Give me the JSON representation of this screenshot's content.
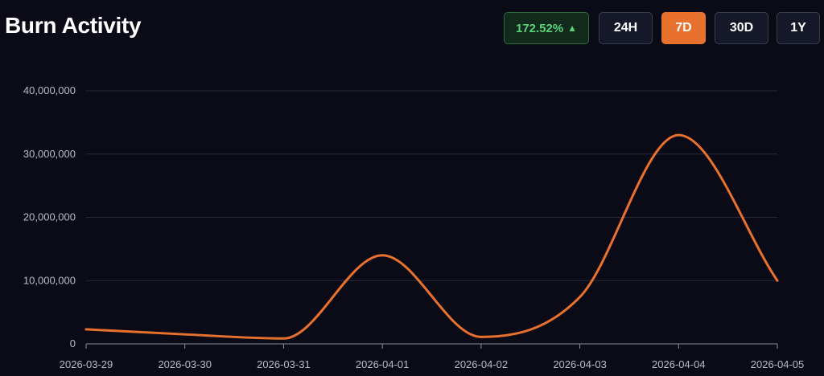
{
  "header": {
    "title": "Burn Activity",
    "change": "172.52%",
    "change_color": "#58d27a",
    "ranges": [
      "24H",
      "7D",
      "30D",
      "1Y"
    ],
    "active_range": "7D"
  },
  "colors": {
    "background": "#0b0b18",
    "line": "#e8712e",
    "active_button": "#e8712e"
  },
  "chart_data": {
    "type": "line",
    "title": "Burn Activity",
    "xlabel": "",
    "ylabel": "",
    "x": [
      "2026-03-29",
      "2026-03-30",
      "2026-03-31",
      "2026-04-01",
      "2026-04-02",
      "2026-04-03",
      "2026-04-04",
      "2026-04-05"
    ],
    "series": [
      {
        "values": [
          2300000,
          1500000,
          850000,
          14000000,
          1100000,
          7400000,
          33000000,
          10000000
        ]
      }
    ],
    "ylim": [
      0,
      40000000
    ],
    "yticks": [
      "0",
      "10,000,000",
      "20,000,000",
      "30,000,000",
      "40,000,000"
    ],
    "ytick_values": [
      0,
      10000000,
      20000000,
      30000000,
      40000000
    ],
    "grid": true,
    "smooth": true
  }
}
